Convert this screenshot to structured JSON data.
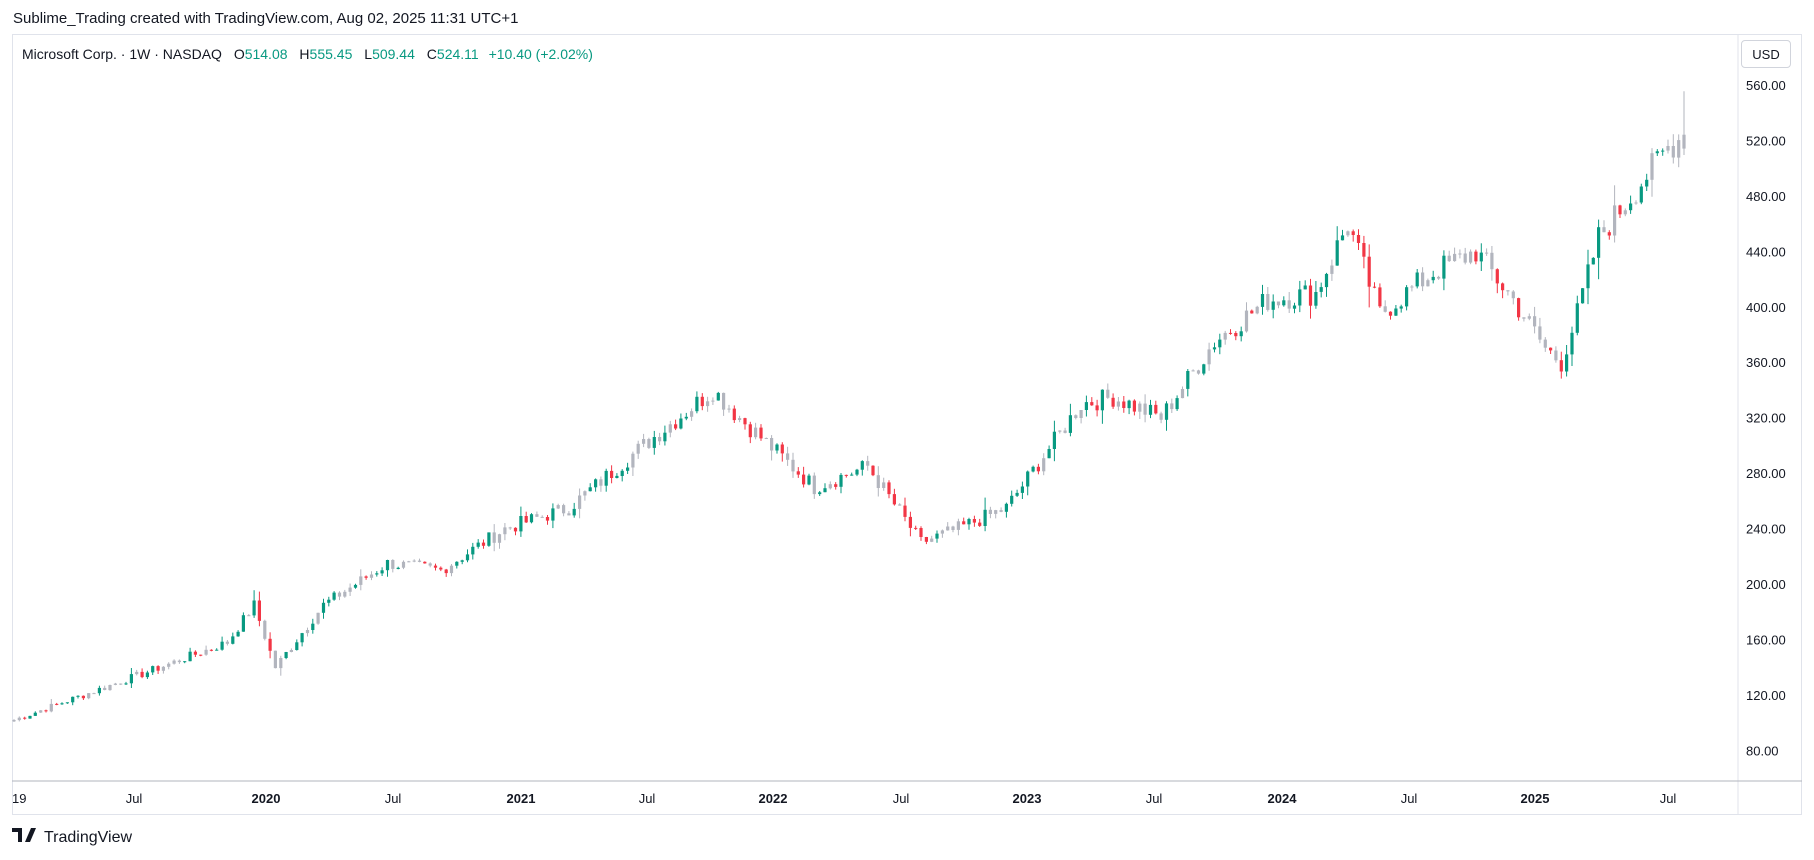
{
  "header": {
    "created_text": "Sublime_Trading created with TradingView.com, Aug 02, 2025 11:31 UTC+1"
  },
  "legend": {
    "symbol": "Microsoft Corp. · 1W · NASDAQ",
    "open_label": "O",
    "open": "514.08",
    "high_label": "H",
    "high": "555.45",
    "low_label": "L",
    "low": "509.44",
    "close_label": "C",
    "close": "524.11",
    "change": "+10.40 (+2.02%)"
  },
  "currency_button": "USD",
  "footer": {
    "brand": "TradingView"
  },
  "colors": {
    "up": "#089981",
    "down": "#f23645",
    "neutral": "#b2b5be",
    "axis_text": "#131722",
    "border": "#e0e3eb"
  },
  "chart_data": {
    "type": "candlestick",
    "title": "Microsoft Corp. · 1W · NASDAQ",
    "ylabel": "USD",
    "ylim": [
      58,
      596
    ],
    "y_ticks": [
      "560.00",
      "520.00",
      "480.00",
      "440.00",
      "400.00",
      "360.00",
      "320.00",
      "280.00",
      "240.00",
      "200.00",
      "160.00",
      "120.00",
      "80.00"
    ],
    "x_ticks": [
      {
        "label": "19",
        "bold": false
      },
      {
        "label": "Jul",
        "bold": false
      },
      {
        "label": "2020",
        "bold": true
      },
      {
        "label": "Jul",
        "bold": false
      },
      {
        "label": "2021",
        "bold": true
      },
      {
        "label": "Jul",
        "bold": false
      },
      {
        "label": "2022",
        "bold": true
      },
      {
        "label": "Jul",
        "bold": false
      },
      {
        "label": "2023",
        "bold": true
      },
      {
        "label": "Jul",
        "bold": false
      },
      {
        "label": "2024",
        "bold": true
      },
      {
        "label": "Jul",
        "bold": false
      },
      {
        "label": "2025",
        "bold": true
      },
      {
        "label": "Jul",
        "bold": false
      }
    ],
    "series_anchors": [
      {
        "week": 0,
        "close": 102
      },
      {
        "week": 26,
        "close": 138
      },
      {
        "week": 40,
        "close": 158
      },
      {
        "week": 45,
        "close": 185
      },
      {
        "week": 49,
        "close": 140
      },
      {
        "week": 58,
        "close": 185
      },
      {
        "week": 70,
        "close": 215
      },
      {
        "week": 80,
        "close": 210
      },
      {
        "week": 92,
        "close": 240
      },
      {
        "week": 104,
        "close": 255
      },
      {
        "week": 118,
        "close": 300
      },
      {
        "week": 131,
        "close": 340
      },
      {
        "week": 136,
        "close": 320
      },
      {
        "week": 150,
        "close": 270
      },
      {
        "week": 160,
        "close": 285
      },
      {
        "week": 170,
        "close": 230
      },
      {
        "week": 177,
        "close": 240
      },
      {
        "week": 186,
        "close": 255
      },
      {
        "week": 200,
        "close": 330
      },
      {
        "week": 206,
        "close": 335
      },
      {
        "week": 215,
        "close": 320
      },
      {
        "week": 225,
        "close": 375
      },
      {
        "week": 235,
        "close": 405
      },
      {
        "week": 244,
        "close": 410
      },
      {
        "week": 250,
        "close": 460
      },
      {
        "week": 256,
        "close": 395
      },
      {
        "week": 266,
        "close": 425
      },
      {
        "week": 274,
        "close": 440
      },
      {
        "week": 281,
        "close": 405
      },
      {
        "week": 287,
        "close": 370
      },
      {
        "week": 290,
        "close": 360
      },
      {
        "week": 293,
        "close": 395
      },
      {
        "week": 297,
        "close": 450
      },
      {
        "week": 310,
        "close": 515
      },
      {
        "week": 313,
        "close": 524.11
      }
    ],
    "last_bar": {
      "open": 514.08,
      "high": 555.45,
      "low": 509.44,
      "close": 524.11
    }
  }
}
